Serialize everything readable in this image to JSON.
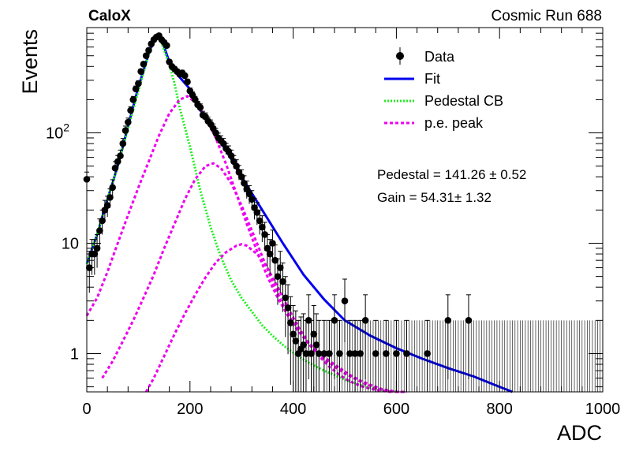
{
  "header": {
    "experiment": "CaloX",
    "run": "Cosmic Run 688"
  },
  "chart_data": {
    "type": "scatter",
    "xlabel": "ADC",
    "ylabel": "Events",
    "xlim": [
      0,
      1000
    ],
    "ylim": [
      0.45,
      900
    ],
    "y_scale": "log",
    "x_ticks": [
      "0",
      "200",
      "400",
      "600",
      "800",
      "1000"
    ],
    "y_ticks": [
      {
        "value": 1,
        "label": "1"
      },
      {
        "value": 10,
        "label": "10"
      },
      {
        "value": 100,
        "label": "10",
        "sup": "2"
      }
    ],
    "legend": {
      "placement": "top-right",
      "entries": [
        {
          "label": "Data",
          "style": "marker",
          "color": "#000000"
        },
        {
          "label": "Fit",
          "style": "solid",
          "color": "#0000ee"
        },
        {
          "label": "Pedestal CB",
          "style": "dotted",
          "color": "#22ee22"
        },
        {
          "label": "p.e. peak",
          "style": "dashed",
          "color": "#ee00ee"
        }
      ]
    },
    "fit_results": {
      "pedestal": "Pedestal = 141.26 ± 0.52",
      "gain": "Gain = 54.31± 1.32"
    },
    "series": [
      {
        "name": "Data",
        "color": "#000000",
        "x": [
          0,
          5,
          10,
          15,
          20,
          25,
          30,
          35,
          40,
          45,
          50,
          55,
          60,
          65,
          70,
          75,
          80,
          85,
          90,
          95,
          100,
          105,
          110,
          115,
          120,
          125,
          130,
          135,
          140,
          145,
          150,
          155,
          160,
          165,
          170,
          175,
          180,
          185,
          190,
          195,
          200,
          205,
          210,
          215,
          220,
          225,
          230,
          235,
          240,
          245,
          250,
          255,
          260,
          265,
          270,
          275,
          280,
          285,
          290,
          295,
          300,
          305,
          310,
          315,
          320,
          325,
          330,
          335,
          340,
          345,
          350,
          355,
          360,
          365,
          370,
          375,
          380,
          385,
          390,
          395,
          400,
          405,
          410,
          415,
          420,
          425,
          430,
          435,
          440,
          445,
          450,
          460,
          470,
          480,
          490,
          500,
          510,
          520,
          530,
          540,
          560,
          580,
          600,
          620,
          660,
          700,
          740
        ],
        "y": [
          38,
          6,
          8,
          8,
          9,
          13,
          16,
          20,
          22,
          26,
          32,
          48,
          55,
          62,
          80,
          105,
          125,
          160,
          200,
          250,
          280,
          360,
          420,
          500,
          560,
          640,
          700,
          740,
          760,
          700,
          660,
          620,
          440,
          400,
          380,
          360,
          340,
          350,
          330,
          290,
          240,
          220,
          200,
          180,
          170,
          145,
          140,
          128,
          120,
          110,
          100,
          90,
          85,
          80,
          72,
          68,
          62,
          55,
          50,
          44,
          40,
          35,
          31,
          28,
          25,
          21,
          19,
          16,
          14,
          12,
          9,
          8,
          10,
          7,
          5,
          6,
          4.5,
          3.2,
          2.6,
          1.9,
          1.5,
          1.3,
          1.0,
          1.1,
          1.2,
          1.0,
          2.0,
          1.0,
          1.5,
          1.2,
          1.0,
          1.0,
          1.0,
          2.0,
          1.0,
          3.0,
          1.0,
          1.0,
          1.0,
          2.0,
          1.0,
          1.0,
          1.0,
          1.0,
          1.0,
          2.0,
          2.0
        ]
      },
      {
        "name": "Fit",
        "color": "#0000ee",
        "x": [
          0,
          20,
          40,
          60,
          80,
          100,
          120,
          130,
          140,
          150,
          160,
          170,
          180,
          200,
          220,
          240,
          260,
          280,
          300,
          340,
          380,
          420,
          460,
          500,
          550,
          600,
          650,
          700,
          750,
          800,
          825
        ],
        "y": [
          6.5,
          12,
          25,
          50,
          115,
          260,
          520,
          680,
          760,
          600,
          440,
          370,
          320,
          250,
          160,
          115,
          82,
          58,
          40,
          20,
          10,
          5.2,
          3.1,
          2.0,
          1.45,
          1.12,
          0.9,
          0.74,
          0.62,
          0.5,
          0.45
        ]
      },
      {
        "name": "Pedestal CB",
        "color": "#22ee22",
        "x": [
          0,
          20,
          40,
          60,
          80,
          100,
          120,
          130,
          140,
          150,
          160,
          170,
          180,
          200,
          220,
          240,
          260,
          280,
          300,
          320,
          340,
          360,
          380,
          400,
          420,
          440,
          460,
          480,
          500,
          520,
          540,
          560,
          580,
          600,
          620
        ],
        "y": [
          6.5,
          12,
          25,
          50,
          110,
          240,
          520,
          680,
          750,
          560,
          420,
          280,
          170,
          75,
          30,
          14,
          7.5,
          4.6,
          3.2,
          2.4,
          1.8,
          1.45,
          1.2,
          1.02,
          0.88,
          0.78,
          0.7,
          0.64,
          0.58,
          0.54,
          0.5,
          0.48,
          0.46,
          0.45,
          0.44
        ]
      },
      {
        "name": "p.e. peak 1",
        "color": "#ee00ee",
        "x": [
          0,
          20,
          40,
          60,
          80,
          100,
          120,
          140,
          160,
          180,
          195,
          210,
          230,
          250,
          270,
          290,
          310,
          330,
          350,
          370,
          390,
          410,
          430,
          450,
          470,
          490,
          510,
          530,
          550,
          570,
          600,
          620
        ],
        "y": [
          2.2,
          3.2,
          5.5,
          10,
          18,
          32,
          55,
          95,
          150,
          200,
          215,
          190,
          140,
          90,
          52,
          28,
          15,
          8.5,
          5,
          3.2,
          2.2,
          1.6,
          1.25,
          1.02,
          0.86,
          0.74,
          0.64,
          0.57,
          0.52,
          0.48,
          0.45,
          0.44
        ]
      },
      {
        "name": "p.e. peak 2",
        "color": "#ee00ee",
        "x": [
          30,
          50,
          70,
          90,
          110,
          130,
          150,
          170,
          190,
          210,
          230,
          245,
          260,
          280,
          300,
          320,
          340,
          360,
          380,
          400,
          420,
          440,
          460,
          480,
          500,
          520,
          540,
          560,
          580,
          600,
          620
        ],
        "y": [
          0.6,
          0.85,
          1.3,
          2.0,
          3.2,
          5.2,
          9,
          15,
          25,
          38,
          50,
          53,
          48,
          35,
          22,
          13,
          7.6,
          4.5,
          2.8,
          1.9,
          1.4,
          1.08,
          0.9,
          0.76,
          0.66,
          0.59,
          0.53,
          0.49,
          0.46,
          0.44,
          0.44
        ]
      },
      {
        "name": "p.e. peak 3",
        "color": "#ee00ee",
        "x": [
          115,
          130,
          150,
          170,
          190,
          210,
          230,
          250,
          270,
          290,
          300,
          310,
          330,
          350,
          370,
          390,
          410,
          430,
          450,
          470,
          490,
          510,
          530,
          550,
          570,
          590
        ],
        "y": [
          0.45,
          0.6,
          0.95,
          1.5,
          2.3,
          3.4,
          4.9,
          6.7,
          8.3,
          9.5,
          9.8,
          9.5,
          8.0,
          6.0,
          4.0,
          2.6,
          1.75,
          1.25,
          0.95,
          0.76,
          0.64,
          0.56,
          0.51,
          0.48,
          0.46,
          0.45
        ]
      }
    ]
  }
}
